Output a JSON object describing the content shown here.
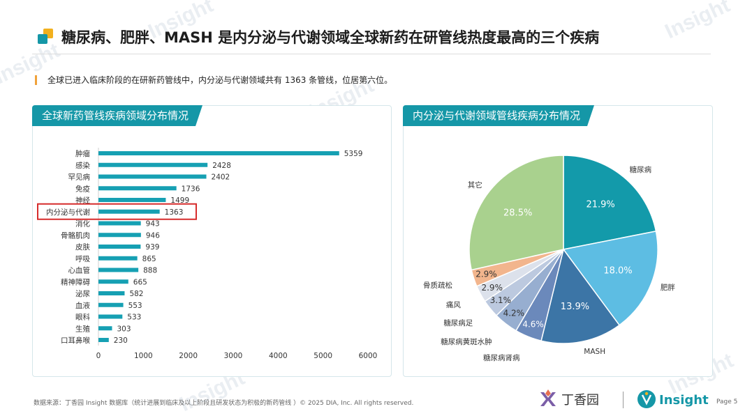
{
  "header": {
    "title": "糖尿病、肥胖、MASH 是内分泌与代谢领域全球新药在研管线热度最高的三个疾病",
    "note": "全球已进入临床阶段的在研新药管线中，内分泌与代谢领域共有 1363 条管线，位居第六位。"
  },
  "colors": {
    "accent": "#1597a7",
    "bar": "#16a0b3",
    "highlight_box": "#d62c2c",
    "note_marker": "#f0a23a",
    "pie": [
      "#139aaa",
      "#5dbde3",
      "#3c75a6",
      "#6b89bb",
      "#97aed0",
      "#bcc9df",
      "#dce1eb",
      "#f2b58d",
      "#a9d18e"
    ]
  },
  "left_panel": {
    "title": "全球新药管线疾病领域分布情况"
  },
  "right_panel": {
    "title": "内分泌与代谢领域管线疾病分布情况"
  },
  "chart_data": [
    {
      "type": "bar",
      "orientation": "horizontal",
      "categories": [
        "肿瘤",
        "感染",
        "罕见病",
        "免疫",
        "神经",
        "内分泌与代谢",
        "消化",
        "骨骼肌肉",
        "皮肤",
        "呼吸",
        "心血管",
        "精神障碍",
        "泌尿",
        "血液",
        "眼科",
        "生殖",
        "口耳鼻喉"
      ],
      "values": [
        5359,
        2428,
        2402,
        1736,
        1499,
        1363,
        943,
        946,
        939,
        865,
        888,
        665,
        582,
        553,
        533,
        303,
        230
      ],
      "xlim": [
        0,
        6000
      ],
      "xticks": [
        0,
        1000,
        2000,
        3000,
        4000,
        5000,
        6000
      ],
      "highlighted_category": "内分泌与代谢",
      "grid": false
    },
    {
      "type": "pie",
      "slices": [
        {
          "label": "糖尿病",
          "value": 21.9,
          "text": "21.9%"
        },
        {
          "label": "肥胖",
          "value": 18.0,
          "text": "18.0%"
        },
        {
          "label": "MASH",
          "value": 13.9,
          "text": "13.9%"
        },
        {
          "label": "糖尿病肾病",
          "value": 4.6,
          "text": "4.6%"
        },
        {
          "label": "糖尿病黄斑水肿",
          "value": 4.2,
          "text": "4.2%"
        },
        {
          "label": "糖尿病足",
          "value": 3.1,
          "text": "3.1%"
        },
        {
          "label": "痛风",
          "value": 2.9,
          "text": "2.9%"
        },
        {
          "label": "骨质疏松",
          "value": 2.9,
          "text": "2.9%"
        },
        {
          "label": "其它",
          "value": 28.5,
          "text": "28.5%"
        }
      ]
    }
  ],
  "footer": {
    "source": "数据来源：丁香园 Insight 数据库（统计进展到临床及以上阶段且研发状态为积极的新药管线 ）© 2025 DIA, Inc. All rights reserved.",
    "brand_dx": "丁香园",
    "brand_insight": "Insight",
    "page": "Page 5"
  }
}
